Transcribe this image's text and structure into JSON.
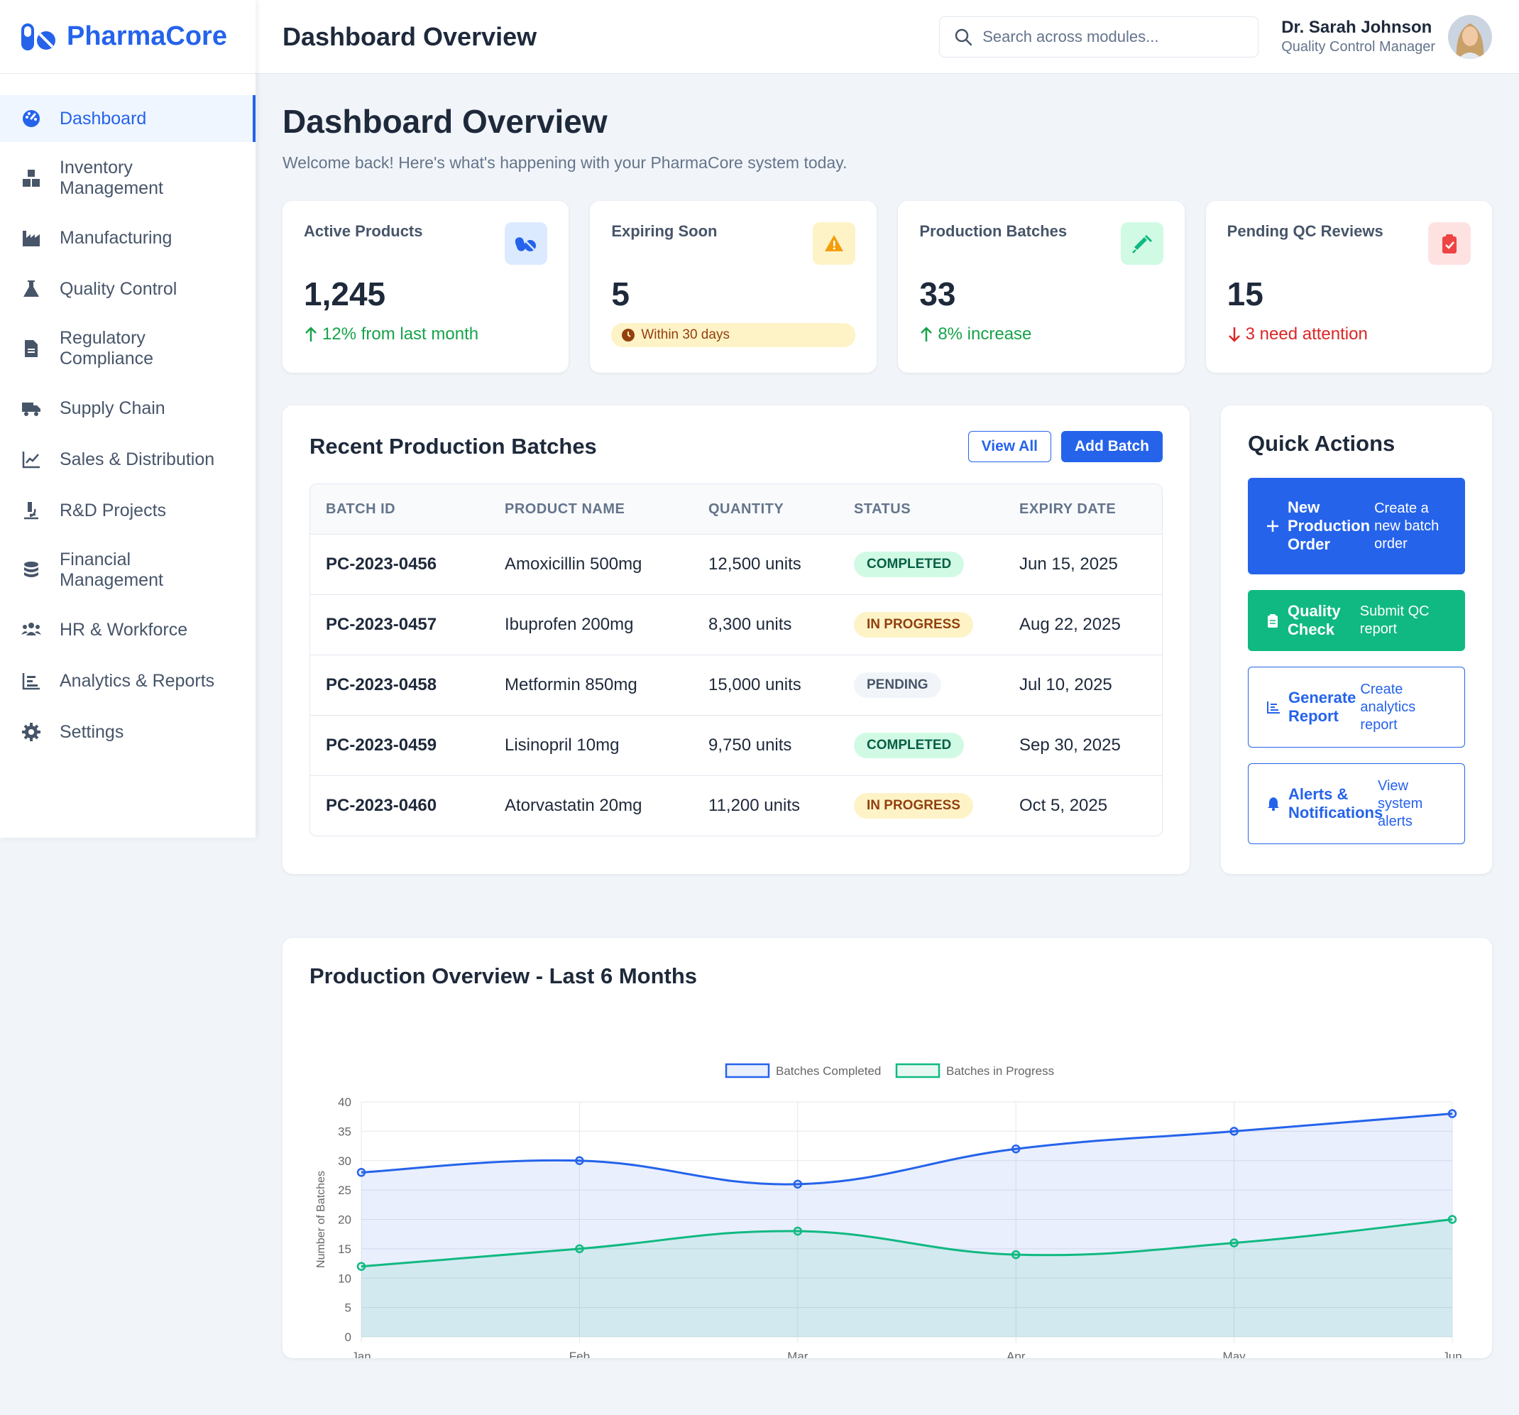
{
  "brand": {
    "name": "PharmaCore"
  },
  "sidebar": {
    "items": [
      {
        "label": "Dashboard",
        "icon": "dashboard-icon",
        "active": true
      },
      {
        "label": "Inventory\nManagement",
        "icon": "boxes-icon"
      },
      {
        "label": "Manufacturing",
        "icon": "factory-icon"
      },
      {
        "label": "Quality Control",
        "icon": "flask-icon"
      },
      {
        "label": "Regulatory\nCompliance",
        "icon": "document-icon"
      },
      {
        "label": "Supply Chain",
        "icon": "truck-icon"
      },
      {
        "label": "Sales & Distribution",
        "icon": "line-chart-icon"
      },
      {
        "label": "R&D Projects",
        "icon": "microscope-icon"
      },
      {
        "label": "Financial\nManagement",
        "icon": "coins-icon"
      },
      {
        "label": "HR & Workforce",
        "icon": "users-icon"
      },
      {
        "label": "Analytics & Reports",
        "icon": "bar-chart-icon"
      },
      {
        "label": "Settings",
        "icon": "gear-icon"
      }
    ]
  },
  "header": {
    "title": "Dashboard Overview",
    "search_placeholder": "Search across modules...",
    "user_name": "Dr. Sarah Johnson",
    "user_role": "Quality Control Manager"
  },
  "page": {
    "title": "Dashboard Overview",
    "subtitle": "Welcome back! Here's what's happening with your PharmaCore system today."
  },
  "stats": [
    {
      "label": "Active Products",
      "value": "1,245",
      "trend": "12% from last month",
      "icon": "pills-icon"
    },
    {
      "label": "Expiring Soon",
      "value": "5",
      "trend": "Within 30 days",
      "icon": "warning-icon"
    },
    {
      "label": "Production Batches",
      "value": "33",
      "trend": "8% increase",
      "icon": "syringe-icon"
    },
    {
      "label": "Pending QC Reviews",
      "value": "15",
      "trend": "3 need attention",
      "icon": "clipboard-check-icon"
    }
  ],
  "batches": {
    "title": "Recent Production Batches",
    "view_all": "View All",
    "add_batch": "Add Batch",
    "columns": [
      "BATCH ID",
      "PRODUCT NAME",
      "QUANTITY",
      "STATUS",
      "EXPIRY DATE"
    ],
    "rows": [
      {
        "id": "PC-2023-0456",
        "product": "Amoxicillin 500mg",
        "quantity": "12,500 units",
        "status": "COMPLETED",
        "expiry": "Jun 15, 2025"
      },
      {
        "id": "PC-2023-0457",
        "product": "Ibuprofen 200mg",
        "quantity": "8,300 units",
        "status": "IN PROGRESS",
        "expiry": "Aug 22, 2025"
      },
      {
        "id": "PC-2023-0458",
        "product": "Metformin 850mg",
        "quantity": "15,000 units",
        "status": "PENDING",
        "expiry": "Jul 10, 2025"
      },
      {
        "id": "PC-2023-0459",
        "product": "Lisinopril 10mg",
        "quantity": "9,750 units",
        "status": "COMPLETED",
        "expiry": "Sep 30, 2025"
      },
      {
        "id": "PC-2023-0460",
        "product": "Atorvastatin 20mg",
        "quantity": "11,200 units",
        "status": "IN PROGRESS",
        "expiry": "Oct 5, 2025"
      }
    ]
  },
  "status_colors": {
    "COMPLETED": {
      "bg": "#d1fae5",
      "fg": "#065f46"
    },
    "IN PROGRESS": {
      "bg": "#fef3c7",
      "fg": "#92400e"
    },
    "PENDING": {
      "bg": "#f1f5f9",
      "fg": "#475569"
    }
  },
  "quick_actions": {
    "title": "Quick Actions",
    "items": [
      {
        "label": "New Production Order",
        "desc": "Create a new batch order",
        "icon": "plus-icon"
      },
      {
        "label": "Quality Check",
        "desc": "Submit QC report",
        "icon": "clipboard-icon"
      },
      {
        "label": "Generate Report",
        "desc": "Create analytics report",
        "icon": "chart-icon"
      },
      {
        "label": "Alerts & Notifications",
        "desc": "View system alerts",
        "icon": "bell-icon"
      }
    ]
  },
  "chart_data": {
    "type": "line",
    "title": "Production Overview - Last 6 Months",
    "categories": [
      "Jan",
      "Feb",
      "Mar",
      "Apr",
      "May",
      "Jun"
    ],
    "series": [
      {
        "name": "Batches Completed",
        "values": [
          28,
          30,
          26,
          32,
          35,
          38
        ],
        "color": "#2563eb",
        "fill": "rgba(37,99,235,0.10)"
      },
      {
        "name": "Batches in Progress",
        "values": [
          12,
          15,
          18,
          14,
          16,
          20
        ],
        "color": "#10b981",
        "fill": "rgba(16,185,129,0.10)"
      }
    ],
    "ylabel": "Number of Batches",
    "xlabel": "",
    "ylim": [
      0,
      40
    ],
    "yticks": [
      0,
      5,
      10,
      15,
      20,
      25,
      30,
      35,
      40
    ],
    "grid": true,
    "legend": "top-center"
  },
  "colors": {
    "accent": "#2563eb",
    "success": "#10b981",
    "warning": "#f59e0b",
    "danger": "#ef4444"
  }
}
